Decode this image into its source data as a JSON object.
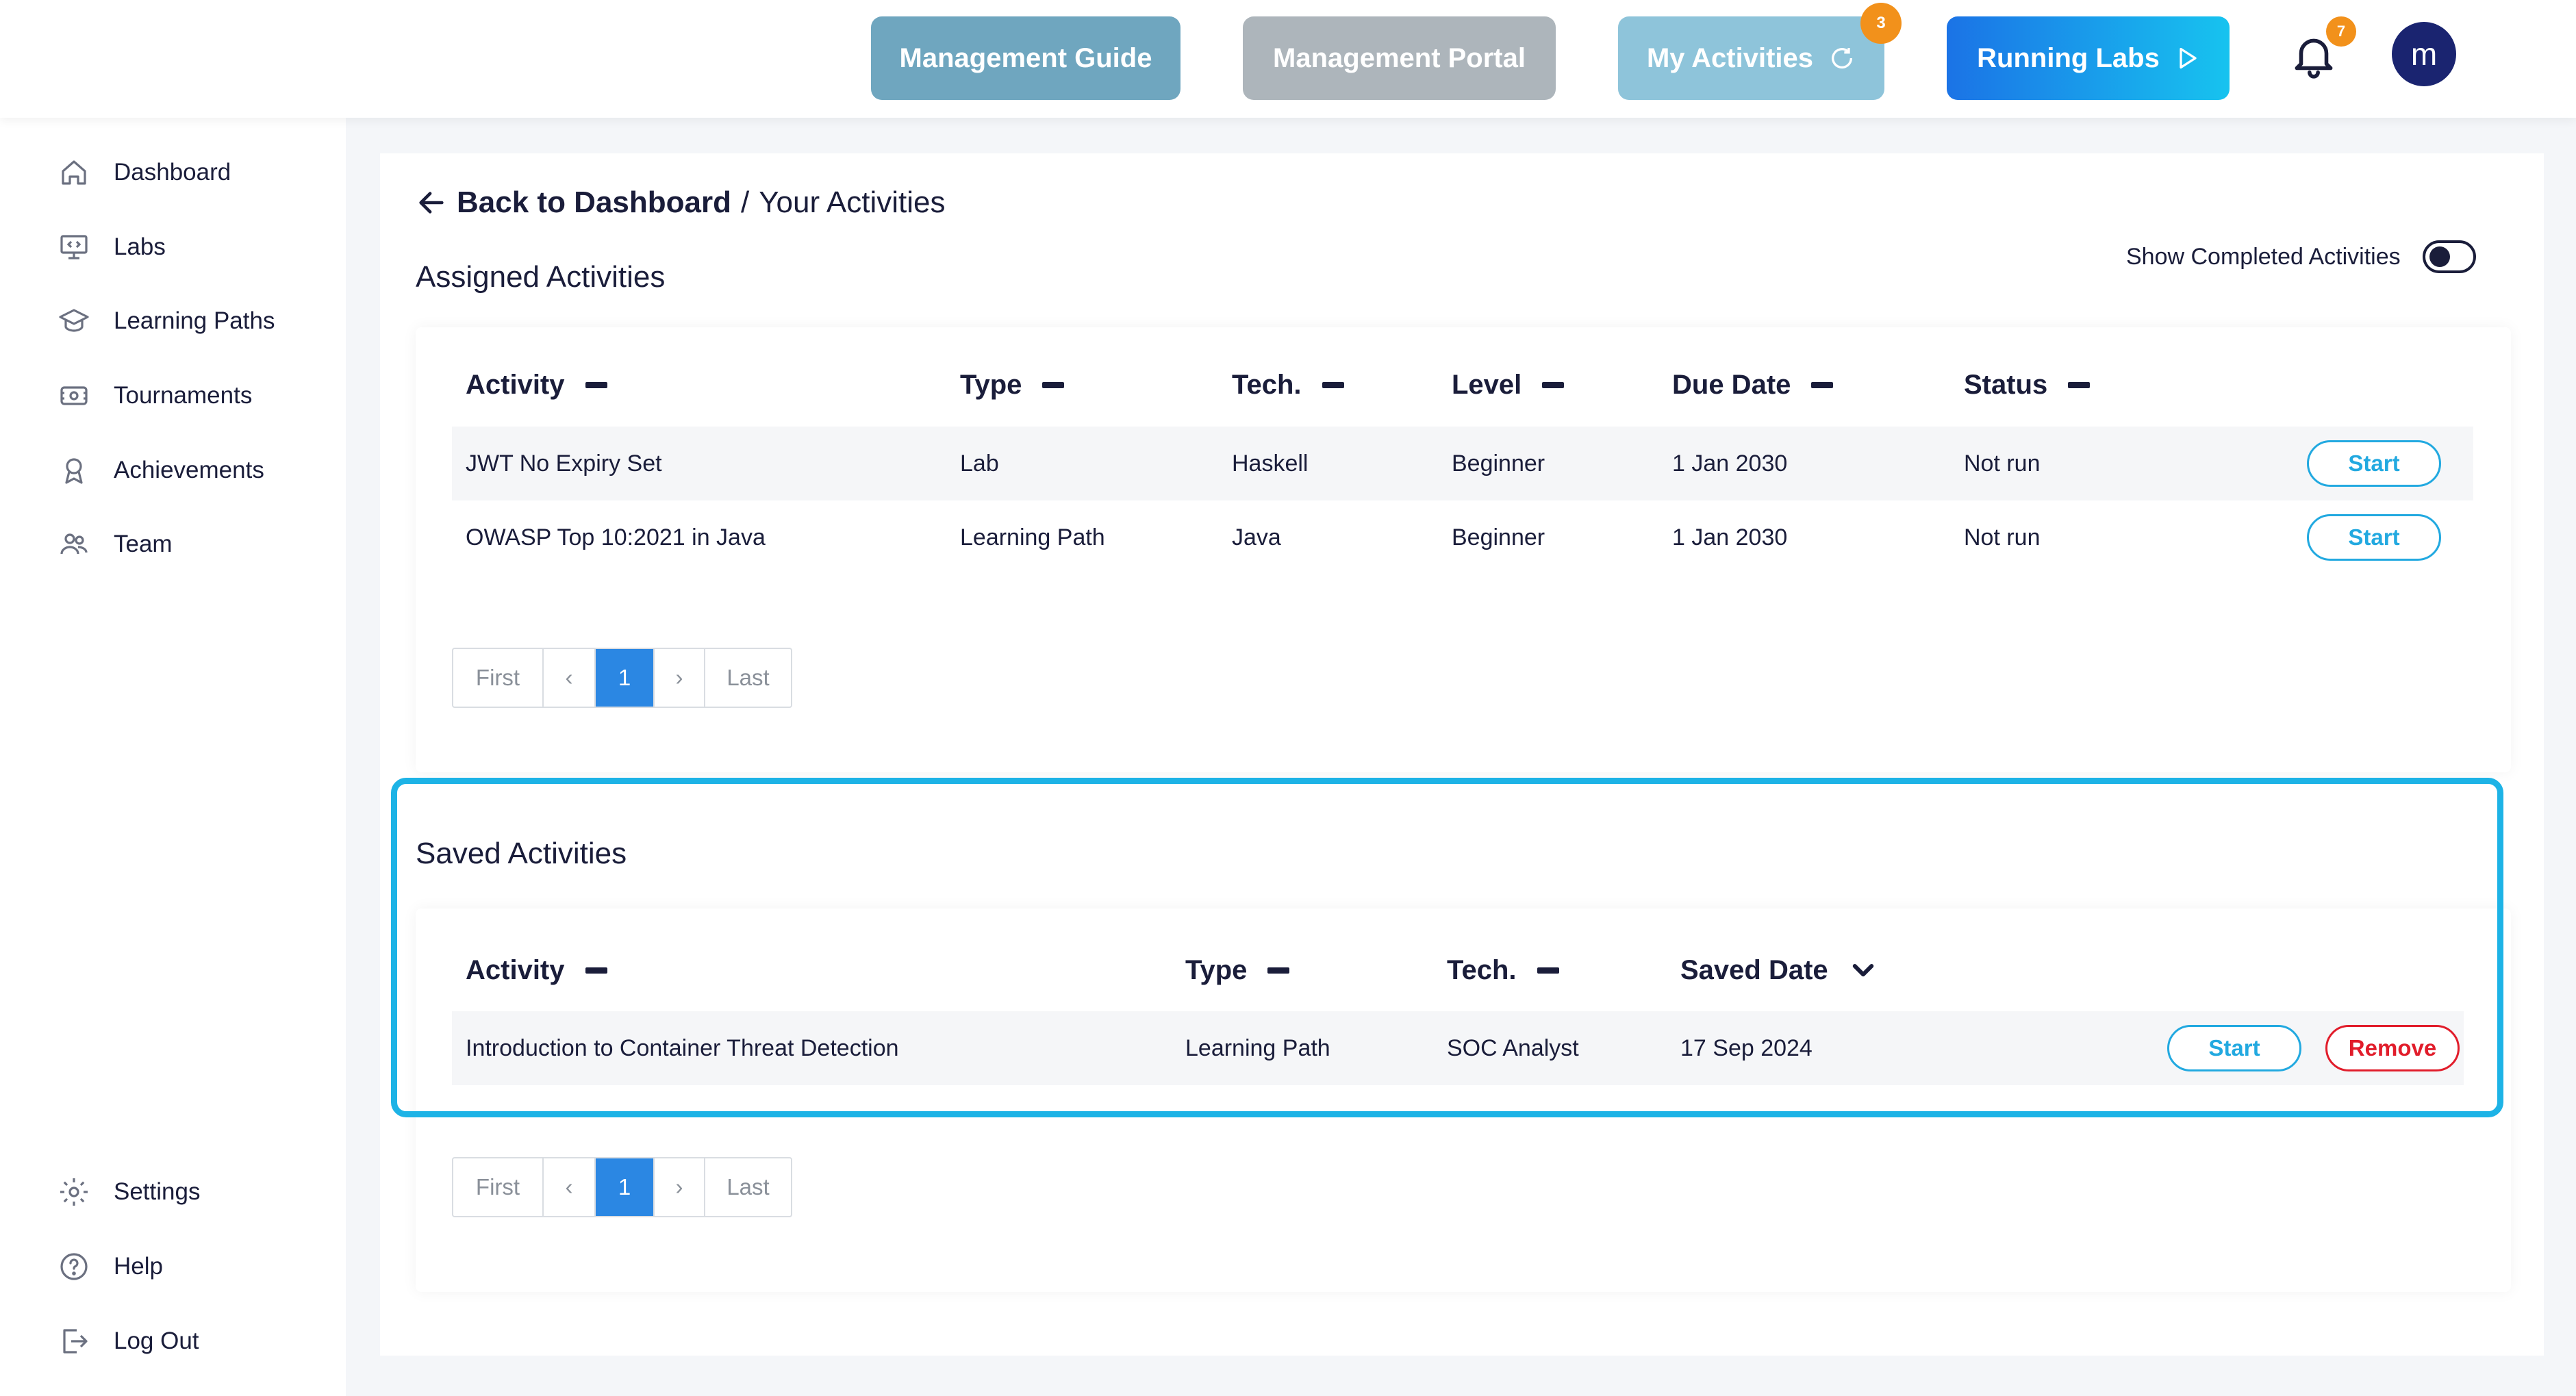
{
  "header": {
    "management_guide": "Management Guide",
    "management_portal": "Management Portal",
    "my_activities": "My Activities",
    "my_activities_badge": "3",
    "running_labs": "Running Labs",
    "notifications_badge": "7",
    "avatar_initial": "m"
  },
  "sidebar": {
    "items": [
      {
        "label": "Dashboard",
        "icon": "home-icon"
      },
      {
        "label": "Labs",
        "icon": "monitor-code-icon"
      },
      {
        "label": "Learning Paths",
        "icon": "graduation-cap-icon"
      },
      {
        "label": "Tournaments",
        "icon": "ticket-icon"
      },
      {
        "label": "Achievements",
        "icon": "award-icon"
      },
      {
        "label": "Team",
        "icon": "users-icon"
      }
    ],
    "bottom_items": [
      {
        "label": "Settings",
        "icon": "gear-icon"
      },
      {
        "label": "Help",
        "icon": "help-circle-icon"
      },
      {
        "label": "Log Out",
        "icon": "logout-icon"
      }
    ]
  },
  "breadcrumb": {
    "back": "Back to Dashboard",
    "separator": "/",
    "current": "Your Activities"
  },
  "assigned": {
    "title": "Assigned Activities",
    "toggle_label": "Show Completed Activities",
    "columns": [
      "Activity",
      "Type",
      "Tech.",
      "Level",
      "Due Date",
      "Status"
    ],
    "rows": [
      {
        "activity": "JWT No Expiry Set",
        "type": "Lab",
        "tech": "Haskell",
        "level": "Beginner",
        "due": "1 Jan 2030",
        "status": "Not run",
        "action": "Start"
      },
      {
        "activity": "OWASP Top 10:2021 in Java",
        "type": "Learning Path",
        "tech": "Java",
        "level": "Beginner",
        "due": "1 Jan 2030",
        "status": "Not run",
        "action": "Start"
      }
    ],
    "pager": {
      "first": "First",
      "prev": "‹",
      "page": "1",
      "next": "›",
      "last": "Last"
    }
  },
  "saved": {
    "title": "Saved Activities",
    "columns": [
      "Activity",
      "Type",
      "Tech.",
      "Saved Date"
    ],
    "rows": [
      {
        "activity": "Introduction to Container Threat Detection",
        "type": "Learning Path",
        "tech": "SOC Analyst",
        "saved": "17 Sep 2024",
        "start": "Start",
        "remove": "Remove"
      }
    ],
    "pager": {
      "first": "First",
      "prev": "‹",
      "page": "1",
      "next": "›",
      "last": "Last"
    }
  },
  "colors": {
    "accent": "#1db3e6",
    "primary_text": "#1a1d3a",
    "remove": "#e11d2b",
    "badge": "#f2911b"
  }
}
